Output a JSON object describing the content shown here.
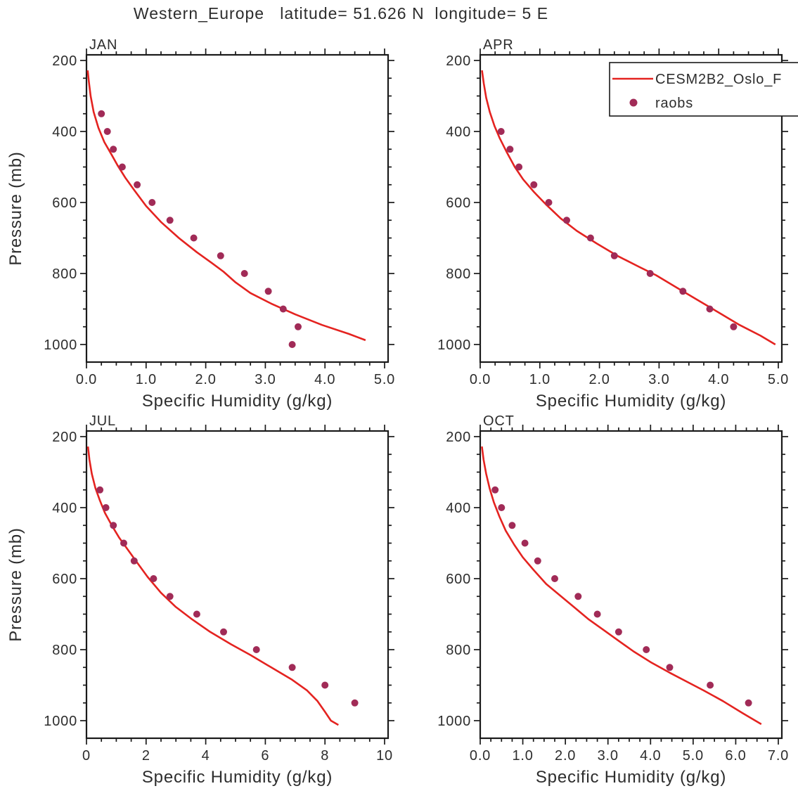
{
  "title": "Western_Europe   latitude= 51.626 N  longitude= 5 E",
  "colors": {
    "model_line": "#e42320",
    "obs_dot": "#a12b57",
    "text": "#2d2d2d",
    "axis": "#1a1a1a",
    "background": "#ffffff"
  },
  "legend": {
    "position": "top-right-of-APR-panel",
    "entries": [
      {
        "label": "CESM2B2_Oslo_F",
        "marker": "line"
      },
      {
        "label": "raobs",
        "marker": "dot"
      }
    ]
  },
  "chart_data": [
    {
      "type": "line",
      "panel": "JAN",
      "title": "JAN",
      "xlabel": "Specific Humidity (g/kg)",
      "ylabel": "Pressure (mb)",
      "xlim": [
        0,
        5
      ],
      "ylim": [
        200,
        1000
      ],
      "y_inverted": true,
      "grid": false,
      "xticks": [
        "0.0",
        "1.0",
        "2.0",
        "3.0",
        "4.0",
        "5.0"
      ],
      "xtick_values": [
        0,
        1,
        2,
        3,
        4,
        5
      ],
      "x_minor_step": 0.25,
      "yticks": [
        "200",
        "400",
        "600",
        "800",
        "1000"
      ],
      "ytick_values": [
        200,
        400,
        600,
        800,
        1000
      ],
      "y_minor_step": 50,
      "series": [
        {
          "name": "CESM2B2_Oslo_F",
          "type": "line",
          "points": [
            [
              0.02,
              228
            ],
            [
              0.04,
              260
            ],
            [
              0.07,
              300
            ],
            [
              0.12,
              345
            ],
            [
              0.2,
              390
            ],
            [
              0.3,
              430
            ],
            [
              0.42,
              465
            ],
            [
              0.52,
              495
            ],
            [
              0.65,
              530
            ],
            [
              0.8,
              565
            ],
            [
              1.0,
              610
            ],
            [
              1.25,
              655
            ],
            [
              1.55,
              700
            ],
            [
              1.85,
              740
            ],
            [
              2.1,
              770
            ],
            [
              2.3,
              795
            ],
            [
              2.5,
              825
            ],
            [
              2.75,
              855
            ],
            [
              3.1,
              885
            ],
            [
              3.5,
              915
            ],
            [
              3.95,
              945
            ],
            [
              4.4,
              970
            ],
            [
              4.68,
              988
            ]
          ]
        },
        {
          "name": "raobs",
          "type": "scatter",
          "points": [
            [
              0.25,
              350
            ],
            [
              0.35,
              400
            ],
            [
              0.45,
              450
            ],
            [
              0.6,
              500
            ],
            [
              0.85,
              550
            ],
            [
              1.1,
              600
            ],
            [
              1.4,
              650
            ],
            [
              1.8,
              700
            ],
            [
              2.25,
              750
            ],
            [
              2.65,
              800
            ],
            [
              3.05,
              850
            ],
            [
              3.3,
              900
            ],
            [
              3.55,
              950
            ],
            [
              3.45,
              1000
            ]
          ]
        }
      ]
    },
    {
      "type": "line",
      "panel": "APR",
      "title": "APR",
      "xlabel": "Specific Humidity (g/kg)",
      "ylabel": "Pressure (mb)",
      "xlim": [
        0,
        5
      ],
      "ylim": [
        200,
        1000
      ],
      "y_inverted": true,
      "grid": false,
      "xticks": [
        "0.0",
        "1.0",
        "2.0",
        "3.0",
        "4.0",
        "5.0"
      ],
      "xtick_values": [
        0,
        1,
        2,
        3,
        4,
        5
      ],
      "x_minor_step": 0.25,
      "yticks": [
        "200",
        "400",
        "600",
        "800",
        "1000"
      ],
      "ytick_values": [
        200,
        400,
        600,
        800,
        1000
      ],
      "y_minor_step": 50,
      "series": [
        {
          "name": "CESM2B2_Oslo_F",
          "type": "line",
          "points": [
            [
              0.03,
              228
            ],
            [
              0.06,
              265
            ],
            [
              0.1,
              305
            ],
            [
              0.16,
              345
            ],
            [
              0.24,
              385
            ],
            [
              0.33,
              420
            ],
            [
              0.45,
              460
            ],
            [
              0.58,
              500
            ],
            [
              0.72,
              535
            ],
            [
              0.9,
              570
            ],
            [
              1.1,
              605
            ],
            [
              1.35,
              645
            ],
            [
              1.62,
              680
            ],
            [
              1.95,
              715
            ],
            [
              2.3,
              750
            ],
            [
              2.65,
              780
            ],
            [
              2.95,
              805
            ],
            [
              3.3,
              840
            ],
            [
              3.65,
              875
            ],
            [
              4.0,
              910
            ],
            [
              4.35,
              945
            ],
            [
              4.7,
              975
            ],
            [
              4.95,
              1000
            ]
          ]
        },
        {
          "name": "raobs",
          "type": "scatter",
          "points": [
            [
              0.35,
              400
            ],
            [
              0.5,
              450
            ],
            [
              0.65,
              500
            ],
            [
              0.9,
              550
            ],
            [
              1.15,
              600
            ],
            [
              1.45,
              650
            ],
            [
              1.85,
              700
            ],
            [
              2.25,
              750
            ],
            [
              2.85,
              800
            ],
            [
              3.4,
              850
            ],
            [
              3.85,
              900
            ],
            [
              4.25,
              950
            ]
          ]
        }
      ]
    },
    {
      "type": "line",
      "panel": "JUL",
      "title": "JUL",
      "xlabel": "Specific Humidity (g/kg)",
      "ylabel": "Pressure (mb)",
      "xlim": [
        0,
        10
      ],
      "ylim": [
        200,
        1000
      ],
      "y_inverted": true,
      "grid": false,
      "xticks": [
        "0",
        "2",
        "4",
        "6",
        "8",
        "10"
      ],
      "xtick_values": [
        0,
        2,
        4,
        6,
        8,
        10
      ],
      "x_minor_step": 0.5,
      "yticks": [
        "200",
        "400",
        "600",
        "800",
        "1000"
      ],
      "ytick_values": [
        200,
        400,
        600,
        800,
        1000
      ],
      "y_minor_step": 50,
      "series": [
        {
          "name": "CESM2B2_Oslo_F",
          "type": "line",
          "points": [
            [
              0.05,
              228
            ],
            [
              0.1,
              265
            ],
            [
              0.18,
              305
            ],
            [
              0.3,
              345
            ],
            [
              0.45,
              380
            ],
            [
              0.62,
              415
            ],
            [
              0.85,
              450
            ],
            [
              1.1,
              485
            ],
            [
              1.4,
              520
            ],
            [
              1.7,
              555
            ],
            [
              2.05,
              595
            ],
            [
              2.5,
              640
            ],
            [
              3.0,
              680
            ],
            [
              3.55,
              715
            ],
            [
              4.15,
              750
            ],
            [
              4.85,
              785
            ],
            [
              5.5,
              815
            ],
            [
              6.2,
              850
            ],
            [
              6.9,
              885
            ],
            [
              7.4,
              915
            ],
            [
              7.75,
              945
            ],
            [
              8.0,
              975
            ],
            [
              8.2,
              1000
            ],
            [
              8.45,
              1012
            ]
          ]
        },
        {
          "name": "raobs",
          "type": "scatter",
          "points": [
            [
              0.45,
              350
            ],
            [
              0.65,
              400
            ],
            [
              0.9,
              450
            ],
            [
              1.25,
              500
            ],
            [
              1.6,
              550
            ],
            [
              2.25,
              600
            ],
            [
              2.8,
              650
            ],
            [
              3.7,
              700
            ],
            [
              4.6,
              750
            ],
            [
              5.7,
              800
            ],
            [
              6.9,
              850
            ],
            [
              8.0,
              900
            ],
            [
              9.0,
              950
            ]
          ]
        }
      ]
    },
    {
      "type": "line",
      "panel": "OCT",
      "title": "OCT",
      "xlabel": "Specific Humidity (g/kg)",
      "ylabel": "Pressure (mb)",
      "xlim": [
        0,
        7
      ],
      "ylim": [
        200,
        1000
      ],
      "y_inverted": true,
      "grid": false,
      "xticks": [
        "0.0",
        "1.0",
        "2.0",
        "3.0",
        "4.0",
        "5.0",
        "6.0",
        "7.0"
      ],
      "xtick_values": [
        0,
        1,
        2,
        3,
        4,
        5,
        6,
        7
      ],
      "x_minor_step": 0.25,
      "yticks": [
        "200",
        "400",
        "600",
        "800",
        "1000"
      ],
      "ytick_values": [
        200,
        400,
        600,
        800,
        1000
      ],
      "y_minor_step": 50,
      "series": [
        {
          "name": "CESM2B2_Oslo_F",
          "type": "line",
          "points": [
            [
              0.04,
              228
            ],
            [
              0.08,
              265
            ],
            [
              0.14,
              305
            ],
            [
              0.22,
              345
            ],
            [
              0.32,
              385
            ],
            [
              0.45,
              425
            ],
            [
              0.6,
              465
            ],
            [
              0.8,
              505
            ],
            [
              1.0,
              540
            ],
            [
              1.25,
              575
            ],
            [
              1.55,
              615
            ],
            [
              1.9,
              650
            ],
            [
              2.2,
              680
            ],
            [
              2.55,
              715
            ],
            [
              2.9,
              745
            ],
            [
              3.25,
              775
            ],
            [
              3.6,
              805
            ],
            [
              4.0,
              835
            ],
            [
              4.45,
              865
            ],
            [
              4.85,
              890
            ],
            [
              5.25,
              915
            ],
            [
              5.7,
              945
            ],
            [
              6.15,
              978
            ],
            [
              6.6,
              1010
            ]
          ]
        },
        {
          "name": "raobs",
          "type": "scatter",
          "points": [
            [
              0.35,
              350
            ],
            [
              0.5,
              400
            ],
            [
              0.75,
              450
            ],
            [
              1.05,
              500
            ],
            [
              1.35,
              550
            ],
            [
              1.75,
              600
            ],
            [
              2.3,
              650
            ],
            [
              2.75,
              700
            ],
            [
              3.25,
              750
            ],
            [
              3.9,
              800
            ],
            [
              4.45,
              850
            ],
            [
              5.4,
              900
            ],
            [
              6.3,
              950
            ]
          ]
        }
      ]
    }
  ]
}
